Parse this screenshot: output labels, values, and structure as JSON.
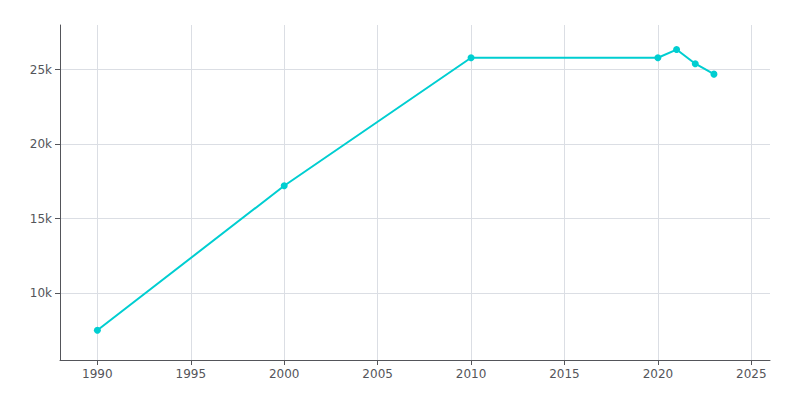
{
  "chart_data": {
    "type": "line",
    "x": [
      1990,
      2000,
      2010,
      2020,
      2021,
      2022,
      2023
    ],
    "values": [
      7500,
      17200,
      25800,
      25800,
      26350,
      25400,
      24700
    ],
    "color": "#00CED1",
    "marker": "circle",
    "xlim": [
      1988,
      2026
    ],
    "ylim": [
      5500,
      28000
    ],
    "xticks": [
      1990,
      1995,
      2000,
      2005,
      2010,
      2015,
      2020,
      2025
    ],
    "yticks": [
      {
        "value": 10000,
        "label": "10k"
      },
      {
        "value": 15000,
        "label": "15k"
      },
      {
        "value": 20000,
        "label": "20k"
      },
      {
        "value": 25000,
        "label": "25k"
      }
    ],
    "grid": true
  }
}
